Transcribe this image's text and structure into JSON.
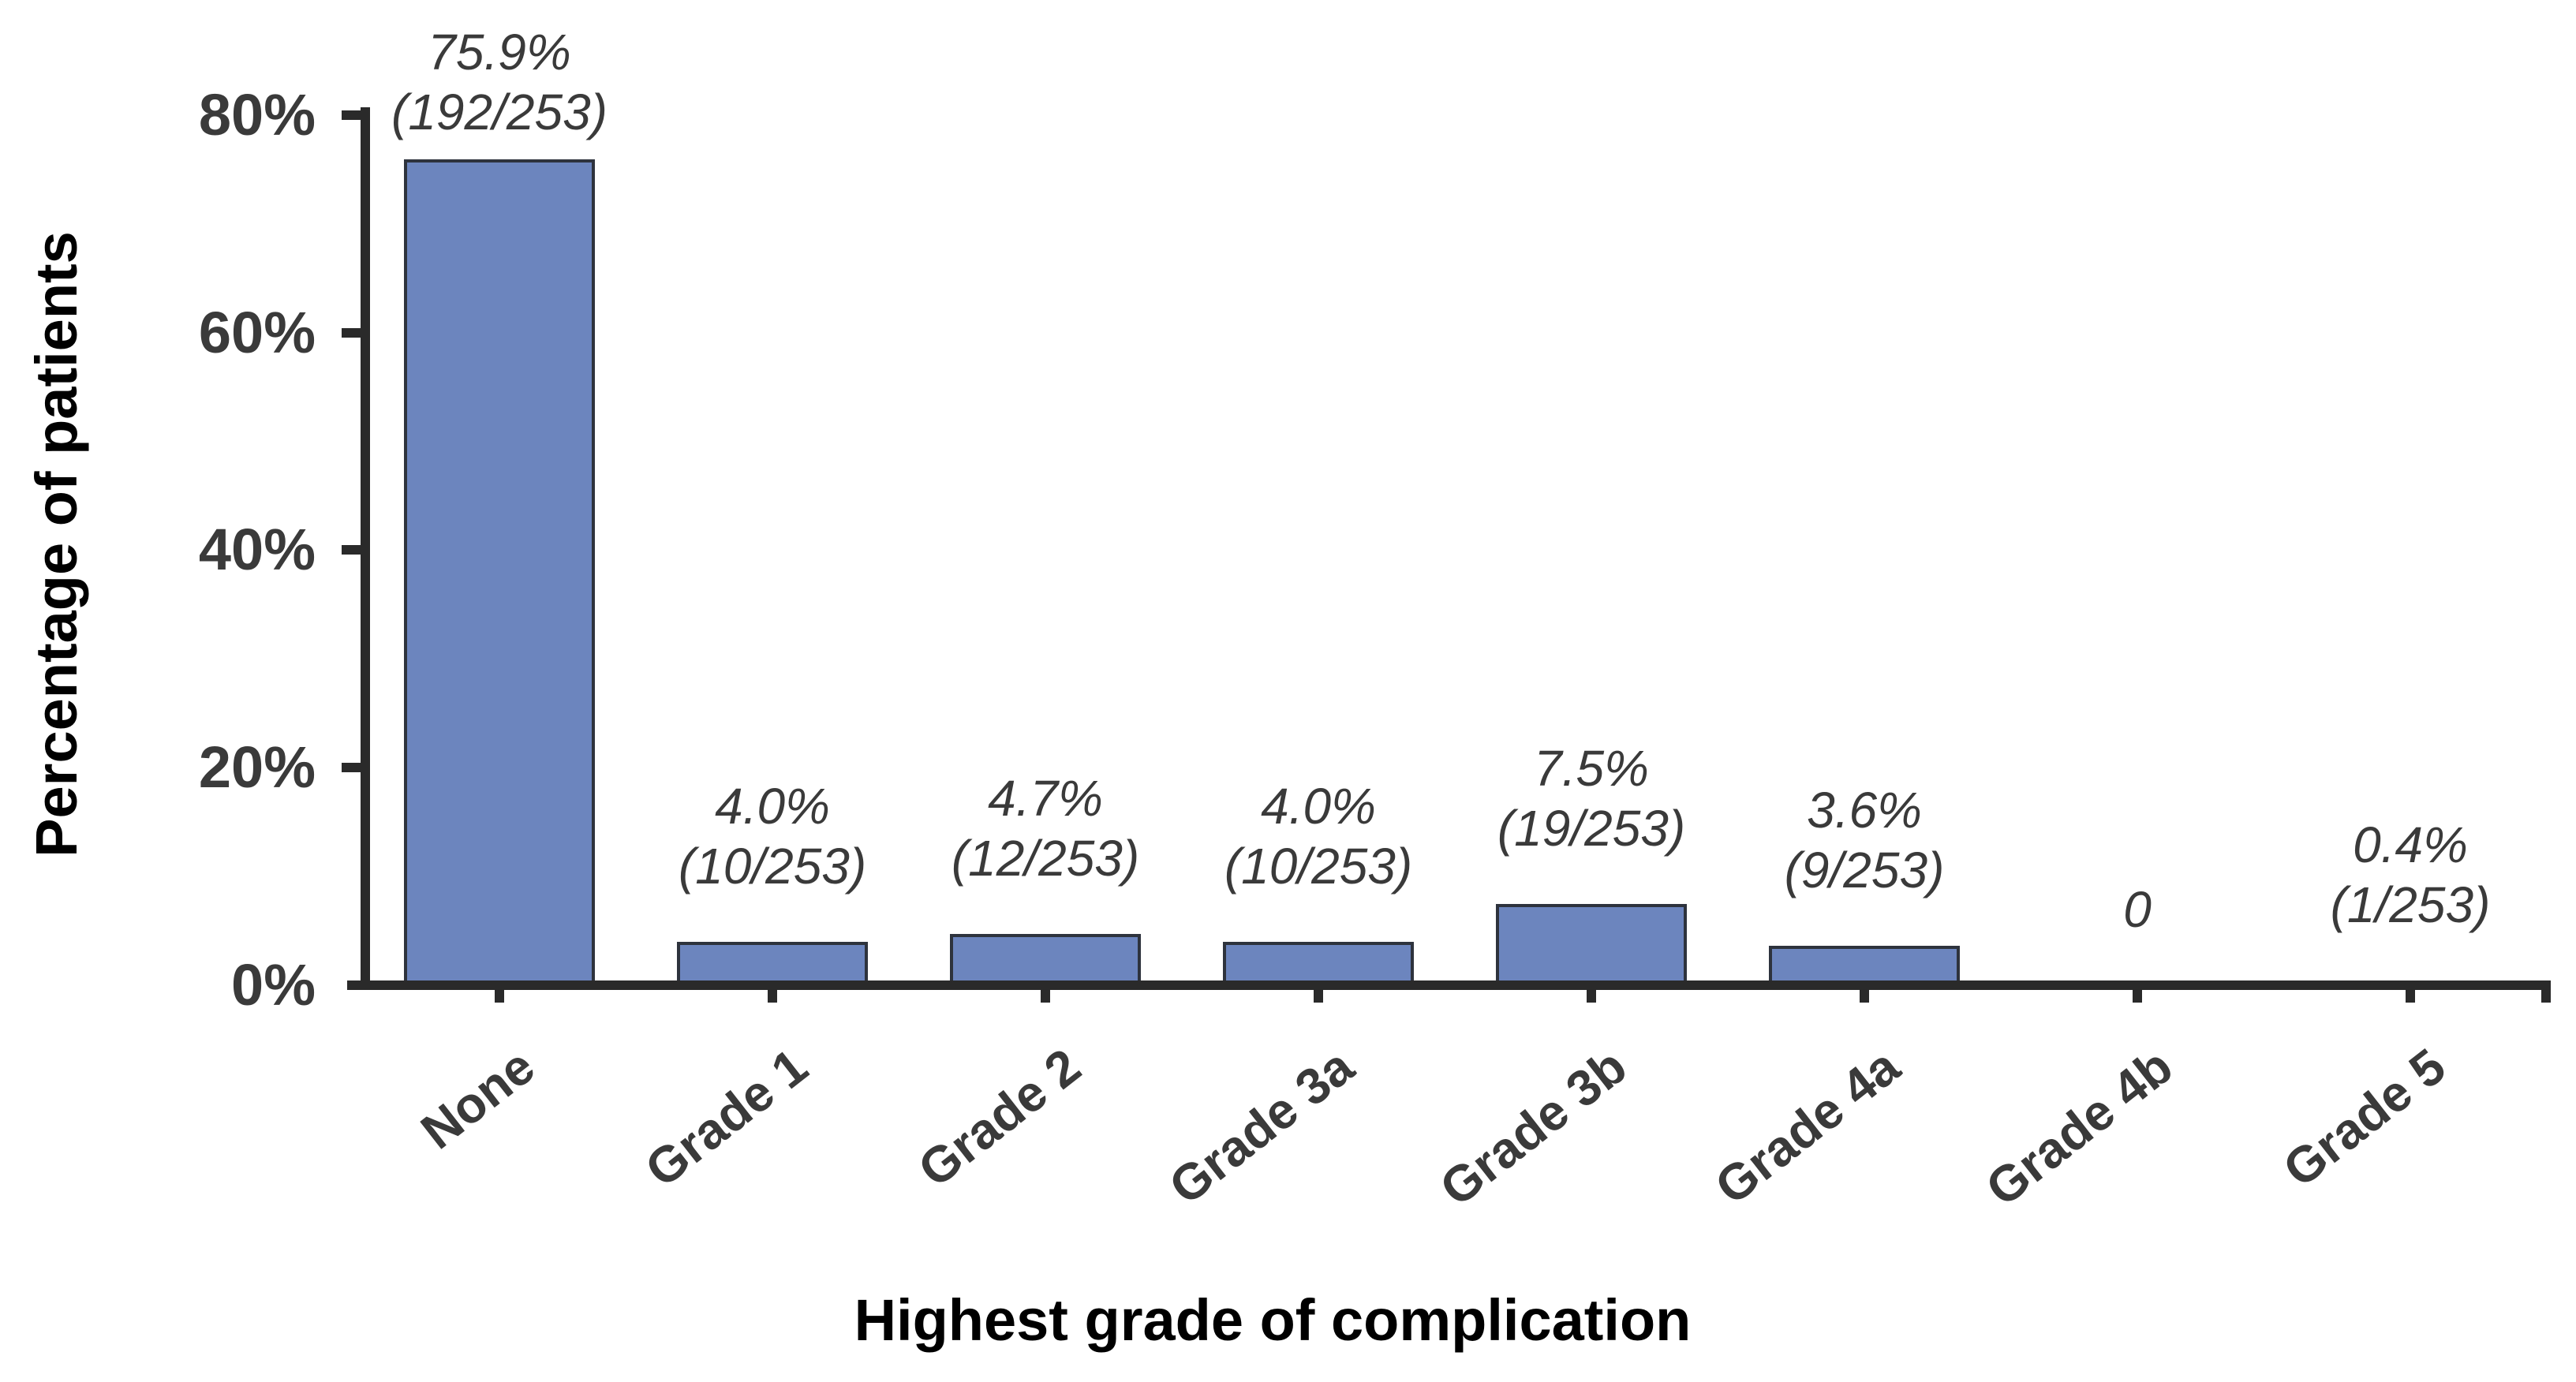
{
  "figure": {
    "background": "#ffffff"
  },
  "chart_data": {
    "type": "bar",
    "title": "",
    "xlabel": "Highest grade of complication",
    "ylabel": "Percentage of patients",
    "categories": [
      "None",
      "Grade 1",
      "Grade 2",
      "Grade 3a",
      "Grade 3b",
      "Grade 4a",
      "Grade 4b",
      "Grade 5"
    ],
    "values": [
      75.9,
      4.0,
      4.7,
      4.0,
      7.5,
      3.6,
      0,
      0.4
    ],
    "bar_labels": [
      [
        "75.9%",
        "(192/253)"
      ],
      [
        "4.0%",
        "(10/253)"
      ],
      [
        "4.7%",
        "(12/253)"
      ],
      [
        "4.0%",
        "(10/253)"
      ],
      [
        "7.5%",
        "(19/253)"
      ],
      [
        "3.6%",
        "(9/253)"
      ],
      [
        "0"
      ],
      [
        "0.4%",
        "(1/253)"
      ]
    ],
    "y_ticks": [
      {
        "label": "80%",
        "value": 80
      },
      {
        "label": "60%",
        "value": 60
      },
      {
        "label": "40%",
        "value": 40
      },
      {
        "label": "20%",
        "value": 20
      },
      {
        "label": "0%",
        "value": 0
      }
    ],
    "ylim": [
      0,
      80
    ],
    "grid": false,
    "legend": null,
    "colors": {
      "bar_fill": "#6C85BE",
      "bar_border": "#2E333D",
      "axis": "#2A2A2A",
      "tick_label": "#3A3A3A",
      "data_label": "#3A3A3A",
      "axis_title": "#000000"
    }
  }
}
